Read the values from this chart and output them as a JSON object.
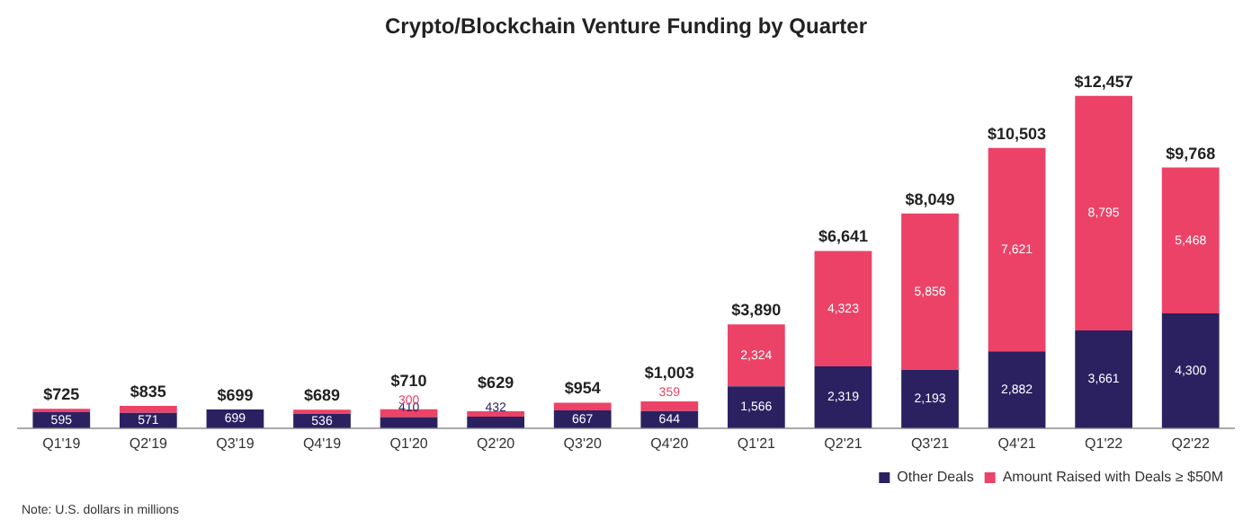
{
  "chart_data": {
    "type": "bar",
    "title": "Crypto/Blockchain Venture Funding by Quarter",
    "stacked": true,
    "legend": "bottom right",
    "grid": false,
    "tick_labels": "x",
    "categories": [
      "Q1'19",
      "Q2'19",
      "Q3'19",
      "Q4'19",
      "Q1'20",
      "Q2'20",
      "Q3'20",
      "Q4'20",
      "Q1'21",
      "Q2'21",
      "Q3'21",
      "Q4'21",
      "Q1'22",
      "Q2'22"
    ],
    "series": [
      {
        "name": "Other Deals",
        "color": "#2b2161",
        "values": [
          595,
          571,
          699,
          536,
          410,
          432,
          667,
          644,
          1566,
          2319,
          2193,
          2882,
          3661,
          4300
        ],
        "value_labels": [
          "595",
          "571",
          "699",
          "536",
          "410",
          "432",
          "667",
          "644",
          "1,566",
          "2,319",
          "2,193",
          "2,882",
          "3,661",
          "4,300"
        ]
      },
      {
        "name": "Amount Raised with Deals ≥ $50M",
        "color": "#ec4267",
        "values": [
          130,
          264,
          0,
          153,
          300,
          197,
          287,
          359,
          2324,
          4323,
          5856,
          7621,
          8795,
          5468
        ],
        "value_labels": [
          null,
          null,
          null,
          null,
          "300",
          null,
          null,
          "359",
          "2,324",
          "4,323",
          "5,856",
          "7,621",
          "8,795",
          "5,468"
        ]
      }
    ],
    "totals": [
      "$725",
      "$835",
      "$699",
      "$689",
      "$710",
      "$629",
      "$954",
      "$1,003",
      "$3,890",
      "$6,641",
      "$8,049",
      "$10,503",
      "$12,457",
      "$9,768"
    ],
    "annotations": [
      "Note: U.S. dollars in millions"
    ]
  }
}
